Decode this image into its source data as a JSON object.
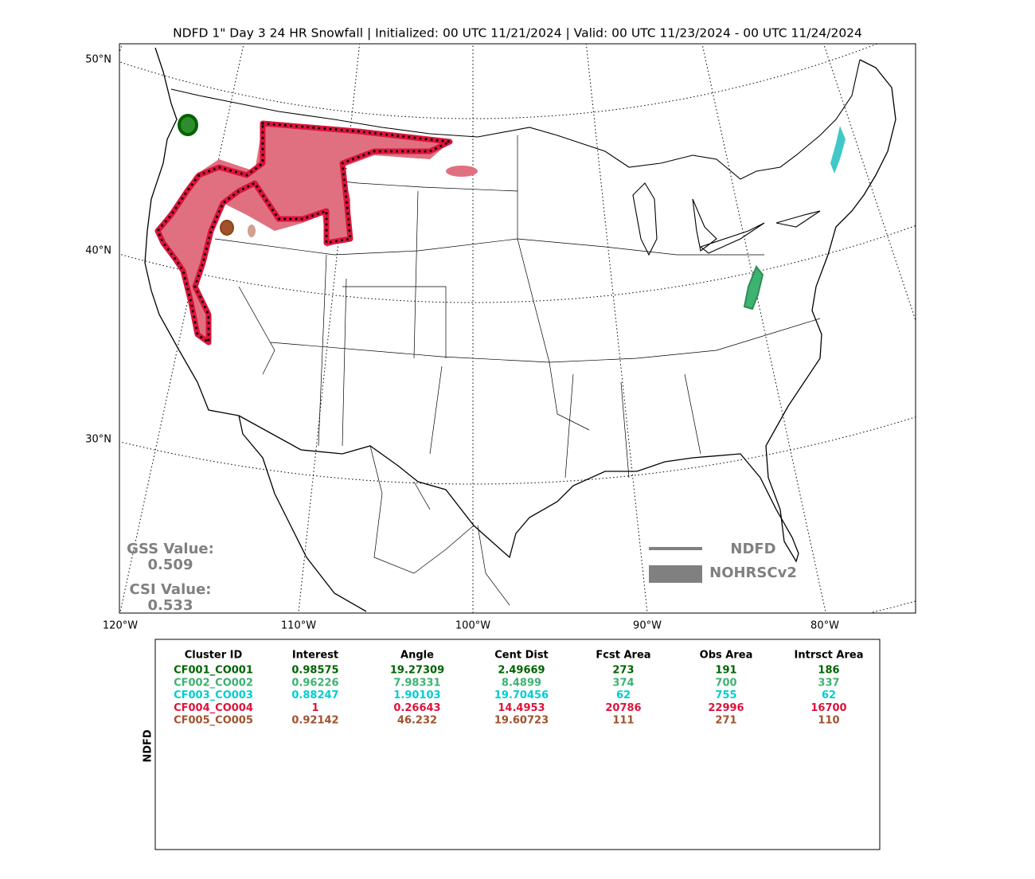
{
  "header": {
    "title": "NDFD 1\" Day 3 24 HR Snowfall | Initialized: 00 UTC 11/21/2024 | Valid: 00 UTC 11/23/2024 - 00 UTC 11/24/2024"
  },
  "map": {
    "lat_labels": [
      "50°N",
      "40°N",
      "30°N"
    ],
    "lon_labels": [
      "120°W",
      "110°W",
      "100°W",
      "90°W",
      "80°W"
    ],
    "scores": {
      "gss_label": "GSS Value:",
      "gss_value": "0.509",
      "csi_label": "CSI Value:",
      "csi_value": "0.533"
    },
    "legend": [
      {
        "label": "NDFD"
      },
      {
        "label": "NOHRSCv2"
      }
    ]
  },
  "table": {
    "side_label": "NDFD",
    "headers": [
      "Cluster ID",
      "Interest",
      "Angle",
      "Cent Dist",
      "Fcst Area",
      "Obs Area",
      "Intrsct Area"
    ],
    "rows": [
      {
        "color": "#006400",
        "cells": [
          "CF001_CO001",
          "0.98575",
          "19.27309",
          "2.49669",
          "273",
          "191",
          "186"
        ]
      },
      {
        "color": "#3cb371",
        "cells": [
          "CF002_CO002",
          "0.96226",
          "7.98331",
          "8.4899",
          "374",
          "700",
          "337"
        ]
      },
      {
        "color": "#00ced1",
        "cells": [
          "CF003_CO003",
          "0.88247",
          "1.90103",
          "19.70456",
          "62",
          "755",
          "62"
        ]
      },
      {
        "color": "#dc143c",
        "cells": [
          "CF004_CO004",
          "1",
          "0.26643",
          "14.4953",
          "20786",
          "22996",
          "16700"
        ]
      },
      {
        "color": "#a0522d",
        "cells": [
          "CF005_CO005",
          "0.92142",
          "46.232",
          "19.60723",
          "111",
          "271",
          "110"
        ]
      }
    ]
  }
}
